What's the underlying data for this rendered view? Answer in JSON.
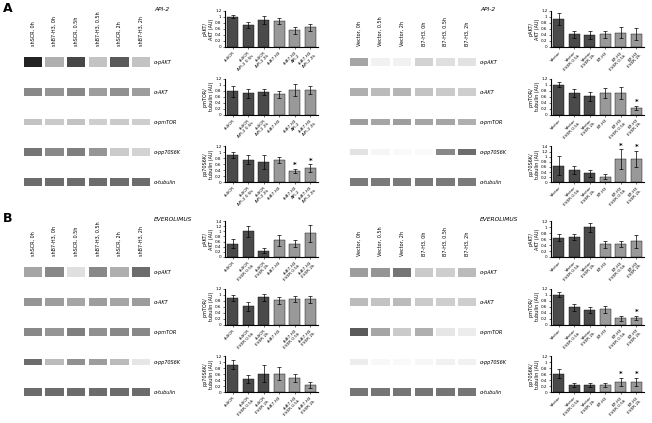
{
  "panel_labels": [
    "A",
    "B"
  ],
  "chart_data": [
    {
      "type": "blot",
      "title": "API-2",
      "columns": [
        "shSCR, 0h",
        "shB7-H3, 0h",
        "shSCR, 0.5h",
        "shB7-H3, 0.5h",
        "shSCR, 2h",
        "shB7-H3, 2h"
      ],
      "rows": [
        "α-pAKT",
        "α-AKT",
        "α-pmTOR",
        "α-pp70S6K",
        "α-tubulin"
      ],
      "cells": [
        [
          0.88,
          0.42,
          0.78,
          0.35,
          0.72,
          0.35
        ],
        [
          0.55,
          0.5,
          0.55,
          0.48,
          0.52,
          0.48
        ],
        [
          0.35,
          0.32,
          0.35,
          0.3,
          0.32,
          0.3
        ],
        [
          0.62,
          0.55,
          0.58,
          0.5,
          0.32,
          0.28
        ],
        [
          0.65,
          0.65,
          0.65,
          0.65,
          0.65,
          0.65
        ]
      ],
      "band_heights": [
        0.9,
        0.7,
        0.5,
        0.6,
        0.7
      ],
      "color_range": [
        0,
        1
      ]
    },
    {
      "type": "bar",
      "y_label": "pAKT/\nAKT (AU)",
      "ylim": [
        0,
        1.2
      ],
      "yticks": [
        0,
        0.2,
        0.4,
        0.6,
        0.8,
        1,
        1.2
      ],
      "categories": [
        "shSCR",
        "shSCR\nAPI-2 0.5h",
        "shSCR\nAPI-2 2h",
        "shB7-H3",
        "shB7-H3\nAPI-2",
        "shB7-H3\nAPI-2 2h"
      ],
      "values": [
        1.0,
        0.72,
        0.9,
        0.88,
        0.55,
        0.65
      ],
      "errors": [
        0.05,
        0.1,
        0.12,
        0.1,
        0.12,
        0.12
      ],
      "colors": [
        "#4a4a4a",
        "#4a4a4a",
        "#4a4a4a",
        "#999999",
        "#999999",
        "#999999"
      ]
    },
    {
      "type": "bar",
      "y_label": "pmTOR/\ntubulin (AU)",
      "ylim": [
        0,
        1.2
      ],
      "yticks": [
        0,
        0.2,
        0.4,
        0.6,
        0.8,
        1,
        1.2
      ],
      "categories": [
        "shSCR",
        "shSCR\nAPI-2 0.5h",
        "shSCR\nAPI-2 2h",
        "shB7-H3",
        "shB7-H3\nAPI-2",
        "shB7-H3\nAPI-2 2h"
      ],
      "values": [
        0.78,
        0.72,
        0.75,
        0.68,
        0.82,
        0.82
      ],
      "errors": [
        0.18,
        0.15,
        0.1,
        0.12,
        0.2,
        0.12
      ],
      "colors": [
        "#4a4a4a",
        "#4a4a4a",
        "#4a4a4a",
        "#999999",
        "#999999",
        "#999999"
      ]
    },
    {
      "type": "bar",
      "y_label": "pp70S6K/\ntubulin (AU)",
      "ylim": [
        0,
        1.2
      ],
      "yticks": [
        0,
        0.2,
        0.4,
        0.6,
        0.8,
        1,
        1.2
      ],
      "categories": [
        "shSCR",
        "shSCR\nAPI-2 0.5h",
        "shSCR\nAPI-2 2h",
        "shB7-H3",
        "shB7-H3\nAPI-2",
        "shB7-H3\nAPI-2 2h"
      ],
      "values": [
        0.92,
        0.75,
        0.68,
        0.75,
        0.38,
        0.48
      ],
      "errors": [
        0.1,
        0.15,
        0.22,
        0.1,
        0.08,
        0.12
      ],
      "colors": [
        "#4a4a4a",
        "#4a4a4a",
        "#4a4a4a",
        "#999999",
        "#999999",
        "#999999"
      ],
      "annotations": [
        {
          "text": "*",
          "category": "shB7-H3\nAPI-2"
        },
        {
          "text": "*",
          "category": "shB7-H3\nAPI-2 2h"
        }
      ]
    },
    {
      "type": "blot",
      "title": "API-2",
      "columns": [
        "Vector, 0h",
        "Vector, 0.5h",
        "Vector, 2h",
        "B7-H3, 0h",
        "B7-H3, 0.5h",
        "B7-H3, 2h"
      ],
      "rows": [
        "α-pAKT",
        "α-AKT",
        "α-pmTOR",
        "α-pp70S6K",
        "α-tubulin"
      ],
      "cells": [
        [
          0.45,
          0.12,
          0.12,
          0.28,
          0.22,
          0.2
        ],
        [
          0.42,
          0.38,
          0.4,
          0.35,
          0.32,
          0.3
        ],
        [
          0.48,
          0.45,
          0.48,
          0.45,
          0.45,
          0.42
        ],
        [
          0.2,
          0.08,
          0.05,
          0.05,
          0.55,
          0.65
        ],
        [
          0.6,
          0.6,
          0.6,
          0.6,
          0.6,
          0.6
        ]
      ],
      "band_heights": [
        0.7,
        0.65,
        0.55,
        0.5,
        0.65
      ],
      "color_range": [
        0,
        1
      ]
    },
    {
      "type": "bar",
      "y_label": "pAKT/\nAKT (AU)",
      "ylim": [
        0,
        1.2
      ],
      "yticks": [
        0,
        0.2,
        0.4,
        0.6,
        0.8,
        1,
        1.2
      ],
      "categories": [
        "Vector",
        "Vector\nEVER 0.5h",
        "Vector\nEVER 2h",
        "B7-H3",
        "B7-H3\nEVER 0.5h",
        "B7-H3\nEVER 2h"
      ],
      "values": [
        0.92,
        0.42,
        0.4,
        0.42,
        0.48,
        0.42
      ],
      "errors": [
        0.2,
        0.12,
        0.12,
        0.12,
        0.18,
        0.2
      ],
      "colors": [
        "#4a4a4a",
        "#4a4a4a",
        "#4a4a4a",
        "#999999",
        "#999999",
        "#999999"
      ]
    },
    {
      "type": "bar",
      "y_label": "pmTOR/\ntubulin (AU)",
      "ylim": [
        0,
        1.2
      ],
      "yticks": [
        0,
        0.2,
        0.4,
        0.6,
        0.8,
        1,
        1.2
      ],
      "categories": [
        "Vector",
        "Vector\nEVER 0.5h",
        "Vector\nEVER 2h",
        "B7-H3",
        "B7-H3\nEVER 0.5h",
        "B7-H3\nEVER 2h"
      ],
      "values": [
        1.0,
        0.72,
        0.62,
        0.72,
        0.72,
        0.22
      ],
      "errors": [
        0.08,
        0.12,
        0.15,
        0.18,
        0.2,
        0.06
      ],
      "colors": [
        "#4a4a4a",
        "#4a4a4a",
        "#4a4a4a",
        "#999999",
        "#999999",
        "#999999"
      ],
      "annotations": [
        {
          "text": "*",
          "category": "B7-H3\nEVER 2h"
        }
      ]
    },
    {
      "type": "bar",
      "y_label": "pp70S6K/\ntubulin (AU)",
      "ylim": [
        0,
        1.4
      ],
      "yticks": [
        0,
        0.2,
        0.4,
        0.6,
        0.8,
        1,
        1.2,
        1.4
      ],
      "categories": [
        "Vector",
        "Vector\nEVER 0.5h",
        "Vector\nEVER 2h",
        "B7-H3",
        "B7-H3\nEVER 0.5h",
        "B7-H3\nEVER 2h"
      ],
      "values": [
        0.65,
        0.48,
        0.35,
        0.22,
        0.9,
        0.92
      ],
      "errors": [
        0.38,
        0.15,
        0.15,
        0.1,
        0.38,
        0.32
      ],
      "colors": [
        "#4a4a4a",
        "#4a4a4a",
        "#4a4a4a",
        "#999999",
        "#999999",
        "#999999"
      ],
      "annotations": [
        {
          "text": "*",
          "category": "B7-H3\nEVER 0.5h"
        },
        {
          "text": "*",
          "category": "B7-H3\nEVER 2h"
        }
      ]
    },
    {
      "type": "blot",
      "title": "EVEROLIMUS",
      "columns": [
        "shSCR, 0h",
        "shB7-H3, 0h",
        "shSCR, 0.5h",
        "shB7-H3, 0.5h",
        "shSCR, 2h",
        "shB7-H3, 2h"
      ],
      "rows": [
        "α-pAKT",
        "α-AKT",
        "α-pmTOR",
        "α-pp70S6K",
        "α-tubulin"
      ],
      "cells": [
        [
          0.45,
          0.55,
          0.22,
          0.55,
          0.42,
          0.65
        ],
        [
          0.5,
          0.48,
          0.45,
          0.48,
          0.45,
          0.48
        ],
        [
          0.55,
          0.5,
          0.58,
          0.52,
          0.55,
          0.55
        ],
        [
          0.65,
          0.38,
          0.52,
          0.48,
          0.38,
          0.18
        ],
        [
          0.65,
          0.65,
          0.65,
          0.65,
          0.65,
          0.65
        ]
      ],
      "band_heights": [
        0.8,
        0.65,
        0.6,
        0.55,
        0.7
      ],
      "color_range": [
        0,
        1
      ]
    },
    {
      "type": "bar",
      "y_label": "pAKT/\nAKT (AU)",
      "ylim": [
        0,
        1.4
      ],
      "yticks": [
        0,
        0.2,
        0.4,
        0.6,
        0.8,
        1,
        1.2,
        1.4
      ],
      "categories": [
        "shSCR",
        "shSCR\nEVER 0.5h",
        "shSCR\nEVER 2h",
        "shB7-H3",
        "shB7-H3\nEVER 0.5h",
        "shB7-H3\nEVER 2h"
      ],
      "values": [
        0.52,
        1.0,
        0.25,
        0.65,
        0.52,
        0.92
      ],
      "errors": [
        0.18,
        0.22,
        0.1,
        0.22,
        0.15,
        0.32
      ],
      "colors": [
        "#4a4a4a",
        "#4a4a4a",
        "#4a4a4a",
        "#999999",
        "#999999",
        "#999999"
      ]
    },
    {
      "type": "bar",
      "y_label": "pmTOR/\ntubulin (AU)",
      "ylim": [
        0,
        1.2
      ],
      "yticks": [
        0,
        0.2,
        0.4,
        0.6,
        0.8,
        1,
        1.2
      ],
      "categories": [
        "shSCR",
        "shSCR\nEVER 0.5h",
        "shSCR\nEVER 2h",
        "shB7-H3",
        "shB7-H3\nEVER 0.5h",
        "shB7-H3\nEVER 2h"
      ],
      "values": [
        0.88,
        0.62,
        0.92,
        0.82,
        0.85,
        0.85
      ],
      "errors": [
        0.1,
        0.15,
        0.12,
        0.12,
        0.1,
        0.12
      ],
      "colors": [
        "#4a4a4a",
        "#4a4a4a",
        "#4a4a4a",
        "#999999",
        "#999999",
        "#999999"
      ]
    },
    {
      "type": "bar",
      "y_label": "pp70S6K/\ntubulin (AU)",
      "ylim": [
        0,
        1.2
      ],
      "yticks": [
        0,
        0.2,
        0.4,
        0.6,
        0.8,
        1,
        1.2
      ],
      "categories": [
        "shSCR",
        "shSCR\nEVER 0.5h",
        "shSCR\nEVER 2h",
        "shB7-H3",
        "shB7-H3\nEVER 0.5h",
        "shB7-H3\nEVER 2h"
      ],
      "values": [
        0.92,
        0.45,
        0.62,
        0.62,
        0.48,
        0.25
      ],
      "errors": [
        0.15,
        0.12,
        0.28,
        0.22,
        0.12,
        0.1
      ],
      "colors": [
        "#4a4a4a",
        "#4a4a4a",
        "#4a4a4a",
        "#999999",
        "#999999",
        "#999999"
      ]
    },
    {
      "type": "blot",
      "title": "EVEROLIMUS",
      "columns": [
        "Vector, 0h",
        "Vector, 0.5h",
        "Vector, 2h",
        "B7-H3, 0h",
        "B7-H3, 0.5h",
        "B7-H3, 2h"
      ],
      "rows": [
        "α-pAKT",
        "α-AKT",
        "α-pmTOR",
        "α-pp70S6K",
        "α-tubulin"
      ],
      "cells": [
        [
          0.48,
          0.5,
          0.62,
          0.32,
          0.3,
          0.38
        ],
        [
          0.38,
          0.35,
          0.38,
          0.32,
          0.3,
          0.3
        ],
        [
          0.72,
          0.45,
          0.32,
          0.42,
          0.18,
          0.15
        ],
        [
          0.15,
          0.06,
          0.05,
          0.08,
          0.12,
          0.12
        ],
        [
          0.62,
          0.62,
          0.62,
          0.62,
          0.62,
          0.62
        ]
      ],
      "band_heights": [
        0.75,
        0.6,
        0.65,
        0.45,
        0.65
      ],
      "color_range": [
        0,
        1
      ]
    },
    {
      "type": "bar",
      "y_label": "pAKT/\nAKT (AU)",
      "ylim": [
        0,
        1.2
      ],
      "yticks": [
        0,
        0.2,
        0.4,
        0.6,
        0.8,
        1,
        1.2
      ],
      "categories": [
        "Vector",
        "Vector\nEVER 0.5h",
        "Vector\nEVER 2h",
        "B7-H3",
        "B7-H3\nEVER 0.5h",
        "B7-H3\nEVER 2h"
      ],
      "values": [
        0.65,
        0.68,
        1.0,
        0.42,
        0.42,
        0.52
      ],
      "errors": [
        0.12,
        0.1,
        0.15,
        0.12,
        0.1,
        0.22
      ],
      "colors": [
        "#4a4a4a",
        "#4a4a4a",
        "#4a4a4a",
        "#999999",
        "#999999",
        "#999999"
      ]
    },
    {
      "type": "bar",
      "y_label": "pmTOR/\ntubulin (AU)",
      "ylim": [
        0,
        1.2
      ],
      "yticks": [
        0,
        0.2,
        0.4,
        0.6,
        0.8,
        1,
        1.2
      ],
      "categories": [
        "Vector",
        "Vector\nEVER 0.5h",
        "Vector\nEVER 2h",
        "B7-H3",
        "B7-H3\nEVER 0.5h",
        "B7-H3\nEVER 2h"
      ],
      "values": [
        1.0,
        0.58,
        0.48,
        0.52,
        0.22,
        0.22
      ],
      "errors": [
        0.08,
        0.12,
        0.1,
        0.12,
        0.08,
        0.06
      ],
      "colors": [
        "#4a4a4a",
        "#4a4a4a",
        "#4a4a4a",
        "#999999",
        "#999999",
        "#999999"
      ],
      "annotations": [
        {
          "text": "*",
          "category": "B7-H3\nEVER 2h"
        }
      ]
    },
    {
      "type": "bar",
      "y_label": "pp70S6K/\ntubulin (AU)",
      "ylim": [
        0,
        1.2
      ],
      "yticks": [
        0,
        0.2,
        0.4,
        0.6,
        0.8,
        1,
        1.2
      ],
      "categories": [
        "Vector",
        "Vector\nEVER 0.5h",
        "Vector\nEVER 2h",
        "B7-H3",
        "B7-H3\nEVER 0.5h",
        "B7-H3\nEVER 2h"
      ],
      "values": [
        0.62,
        0.25,
        0.25,
        0.25,
        0.35,
        0.35
      ],
      "errors": [
        0.15,
        0.08,
        0.08,
        0.08,
        0.12,
        0.12
      ],
      "colors": [
        "#4a4a4a",
        "#4a4a4a",
        "#4a4a4a",
        "#999999",
        "#999999",
        "#999999"
      ],
      "annotations": [
        {
          "text": "*",
          "category": "B7-H3\nEVER 0.5h"
        },
        {
          "text": "*",
          "category": "B7-H3\nEVER 2h"
        }
      ]
    }
  ]
}
